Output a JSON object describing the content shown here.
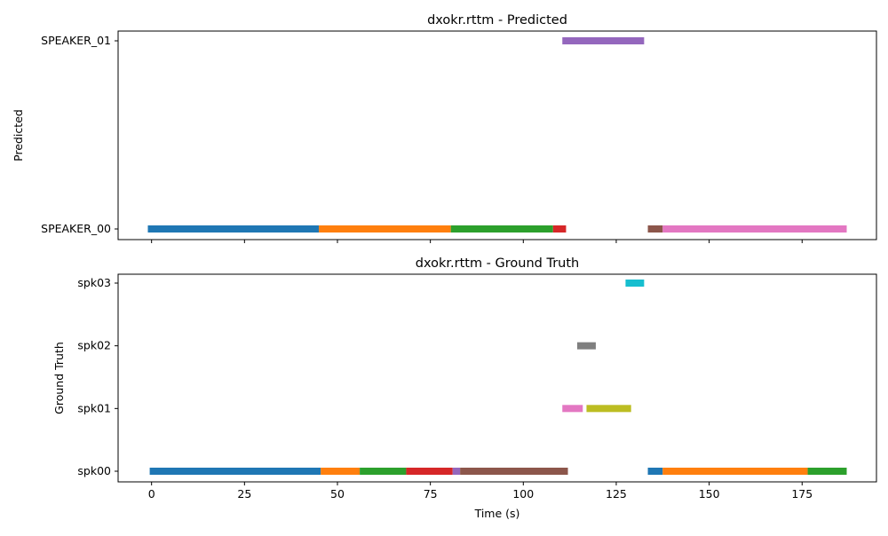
{
  "chart_data": [
    {
      "type": "timeline",
      "title": "dxokr.rttm - Predicted",
      "ylabel": "Predicted",
      "xlabel": "",
      "xlim": [
        -9,
        195
      ],
      "xticks": [
        0,
        25,
        50,
        75,
        100,
        125,
        150,
        175
      ],
      "show_x_tick_labels": false,
      "rows": [
        "SPEAKER_00",
        "SPEAKER_01"
      ],
      "segments": [
        {
          "row": "SPEAKER_00",
          "start": -1,
          "end": 45,
          "color": "#1f77b4"
        },
        {
          "row": "SPEAKER_00",
          "start": 45,
          "end": 80.5,
          "color": "#ff7f0e"
        },
        {
          "row": "SPEAKER_00",
          "start": 80.5,
          "end": 108,
          "color": "#2ca02c"
        },
        {
          "row": "SPEAKER_00",
          "start": 108,
          "end": 111.5,
          "color": "#d62728"
        },
        {
          "row": "SPEAKER_01",
          "start": 110.5,
          "end": 132.5,
          "color": "#9467bd"
        },
        {
          "row": "SPEAKER_00",
          "start": 133.5,
          "end": 137.5,
          "color": "#8c564b"
        },
        {
          "row": "SPEAKER_00",
          "start": 137.5,
          "end": 187,
          "color": "#e377c2"
        }
      ]
    },
    {
      "type": "timeline",
      "title": "dxokr.rttm - Ground Truth",
      "ylabel": "Ground Truth",
      "xlabel": "Time (s)",
      "xlim": [
        -9,
        195
      ],
      "xticks": [
        0,
        25,
        50,
        75,
        100,
        125,
        150,
        175
      ],
      "show_x_tick_labels": true,
      "rows": [
        "spk00",
        "spk01",
        "spk02",
        "spk03"
      ],
      "segments": [
        {
          "row": "spk00",
          "start": -0.5,
          "end": 45.5,
          "color": "#1f77b4"
        },
        {
          "row": "spk00",
          "start": 45.5,
          "end": 56,
          "color": "#ff7f0e"
        },
        {
          "row": "spk00",
          "start": 56,
          "end": 68.5,
          "color": "#2ca02c"
        },
        {
          "row": "spk00",
          "start": 68.5,
          "end": 81,
          "color": "#d62728"
        },
        {
          "row": "spk00",
          "start": 81,
          "end": 83,
          "color": "#9467bd"
        },
        {
          "row": "spk00",
          "start": 83,
          "end": 112,
          "color": "#8c564b"
        },
        {
          "row": "spk01",
          "start": 110.5,
          "end": 116,
          "color": "#e377c2"
        },
        {
          "row": "spk02",
          "start": 114.5,
          "end": 119.5,
          "color": "#7f7f7f"
        },
        {
          "row": "spk01",
          "start": 117,
          "end": 129,
          "color": "#bcbd22"
        },
        {
          "row": "spk03",
          "start": 127.5,
          "end": 132.5,
          "color": "#17becf"
        },
        {
          "row": "spk00",
          "start": 133.5,
          "end": 137.5,
          "color": "#1f77b4"
        },
        {
          "row": "spk00",
          "start": 137.5,
          "end": 176.5,
          "color": "#ff7f0e"
        },
        {
          "row": "spk00",
          "start": 176.5,
          "end": 187,
          "color": "#2ca02c"
        }
      ]
    }
  ]
}
